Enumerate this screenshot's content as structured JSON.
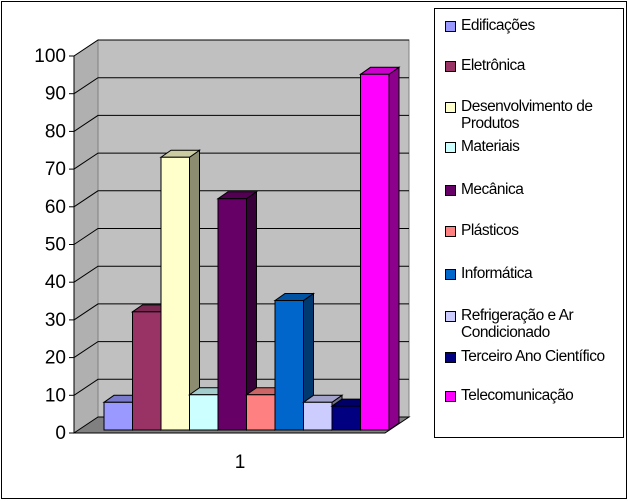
{
  "chart_data": {
    "type": "bar",
    "categories": [
      "1"
    ],
    "series": [
      {
        "name": "Edificações",
        "values": [
          10
        ],
        "color": "#9999ff"
      },
      {
        "name": "Eletrônica",
        "values": [
          34
        ],
        "color": "#993366"
      },
      {
        "name": "Desenvolvimento de Produtos",
        "values": [
          75
        ],
        "color": "#ffffcc"
      },
      {
        "name": "Materiais",
        "values": [
          12
        ],
        "color": "#ccffff"
      },
      {
        "name": "Mecânica",
        "values": [
          64
        ],
        "color": "#660066"
      },
      {
        "name": "Plásticos",
        "values": [
          12
        ],
        "color": "#ff8080"
      },
      {
        "name": "Informática",
        "values": [
          37
        ],
        "color": "#0066cc"
      },
      {
        "name": "Refrigeração e Ar Condicionado",
        "values": [
          10
        ],
        "color": "#ccccff"
      },
      {
        "name": "Terceiro Ano Científico",
        "values": [
          9
        ],
        "color": "#000080"
      },
      {
        "name": "Telecomunicação",
        "values": [
          97
        ],
        "color": "#ff00ff"
      }
    ],
    "ylim": [
      0,
      100
    ],
    "yticks": [
      0,
      10,
      20,
      30,
      40,
      50,
      60,
      70,
      80,
      90,
      100
    ],
    "grid": true,
    "style": "3d-clustered-column",
    "legend_position": "right"
  }
}
